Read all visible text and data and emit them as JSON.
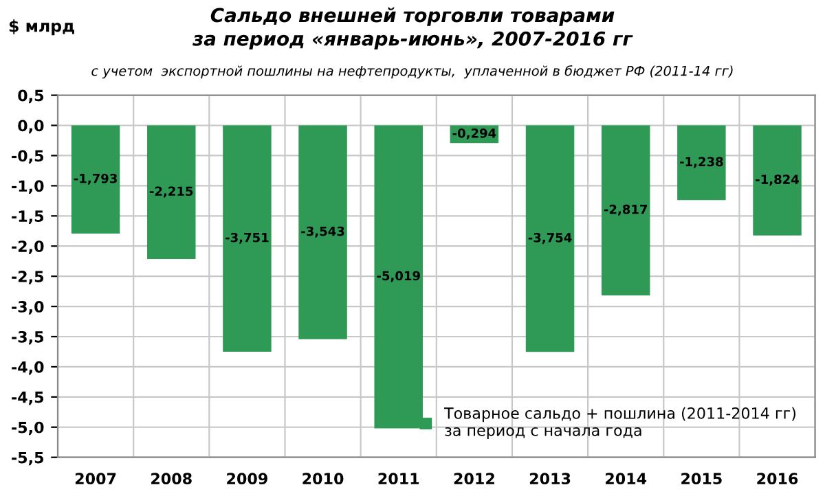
{
  "chart_data": {
    "type": "bar",
    "title": "Сальдо внешней торговли товарами\nза период «январь-июнь», 2007-2016 гг",
    "subtitle": "с учетом  экспортной пошлины на нефтепродукты,  уплаченной в бюджет РФ (2011-14 гг)",
    "annotations": [
      "$ млрд"
    ],
    "categories": [
      "2007",
      "2008",
      "2009",
      "2010",
      "2011",
      "2012",
      "2013",
      "2014",
      "2015",
      "2016"
    ],
    "series": [
      {
        "name": "Товарное сальдо + пошлина (2011-2014 гг)\nза период с начала года",
        "color": "#2f9a55",
        "values": [
          -1.793,
          -2.215,
          -3.751,
          -3.543,
          -5.019,
          -0.294,
          -3.754,
          -2.817,
          -1.238,
          -1.824
        ],
        "value_labels": [
          "-1,793",
          "-2,215",
          "-3,751",
          "-3,543",
          "-5,019",
          "-0,294",
          "-3,754",
          "-2,817",
          "-1,238",
          "-1,824"
        ]
      }
    ],
    "ylim": [
      -5.5,
      0.5
    ],
    "yticks": [
      {
        "value": 0.5,
        "label": "0,5"
      },
      {
        "value": 0,
        "label": "0,0"
      },
      {
        "value": -0.5,
        "label": "-0,5"
      },
      {
        "value": -1,
        "label": "-1,0"
      },
      {
        "value": -1.5,
        "label": "-1,5"
      },
      {
        "value": -2,
        "label": "-2,0"
      },
      {
        "value": -2.5,
        "label": "-2,5"
      },
      {
        "value": -3,
        "label": "-3,0"
      },
      {
        "value": -3.5,
        "label": "-3,5"
      },
      {
        "value": -4,
        "label": "-4,0"
      },
      {
        "value": -4.5,
        "label": "-4,5"
      },
      {
        "value": -5,
        "label": "-5,0"
      },
      {
        "value": -5.5,
        "label": "-5,5"
      }
    ],
    "grid": true,
    "legend": "bottom right"
  }
}
